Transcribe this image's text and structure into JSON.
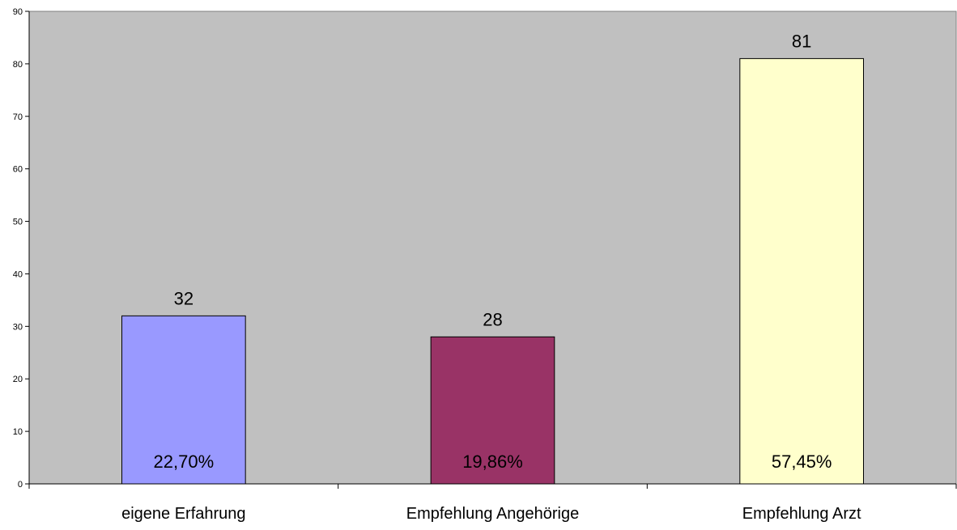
{
  "chart_data": {
    "type": "bar",
    "title": "",
    "xlabel": "",
    "ylabel": "",
    "categories": [
      "eigene Erfahrung",
      "Empfehlung Angehörige",
      "Empfehlung Arzt"
    ],
    "values": [
      32,
      28,
      81
    ],
    "percent_labels": [
      "22,70%",
      "19,86%",
      "57,45%"
    ],
    "bar_colors": [
      "#9999ff",
      "#993366",
      "#ffffcc"
    ],
    "ylim": [
      0,
      90
    ],
    "yticks": [
      0,
      10,
      20,
      30,
      40,
      50,
      60,
      70,
      80,
      90
    ],
    "plot_background": "#c0c0c0",
    "grid": false,
    "legend": "none"
  }
}
